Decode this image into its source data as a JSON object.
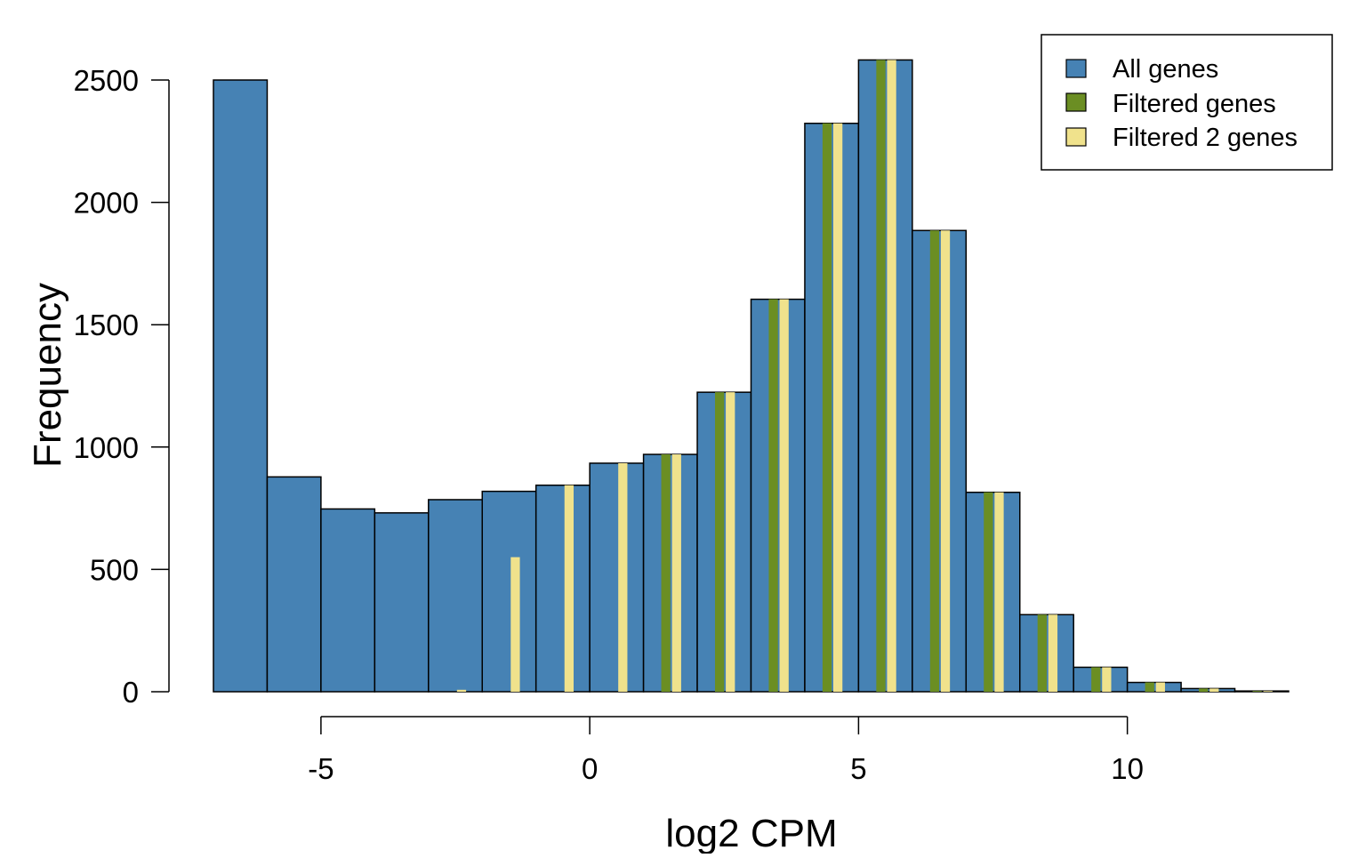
{
  "chart_data": {
    "type": "bar",
    "xlabel": "log2 CPM",
    "ylabel": "Frequency",
    "xlim": [
      -7,
      13
    ],
    "ylim": [
      0,
      2600
    ],
    "xticks": [
      -5,
      0,
      5,
      10
    ],
    "xtick_labels": [
      "-5",
      "0",
      "5",
      "10"
    ],
    "yticks": [
      0,
      500,
      1000,
      1500,
      2000,
      2500
    ],
    "ytick_labels": [
      "0",
      "500",
      "1000",
      "1500",
      "2000",
      "2500"
    ],
    "bin_edges": [
      -7,
      -6,
      -5,
      -4,
      -3,
      -2,
      -1,
      0,
      1,
      2,
      3,
      4,
      5,
      6,
      7,
      8,
      9,
      10,
      11,
      12,
      13
    ],
    "grid": false,
    "legend_position": "top-right",
    "series": [
      {
        "name": "All genes",
        "color": "#4682B4",
        "values": [
          2500,
          878,
          747,
          731,
          785,
          819,
          844,
          934,
          970,
          1224,
          1604,
          2323,
          2582,
          1885,
          815,
          315,
          100,
          38,
          13,
          3
        ]
      },
      {
        "name": "Filtered genes",
        "color": "#6B8E23",
        "values": [
          0,
          0,
          0,
          0,
          0,
          0,
          0,
          0,
          970,
          1224,
          1604,
          2323,
          2582,
          1885,
          815,
          315,
          100,
          38,
          13,
          3
        ]
      },
      {
        "name": "Filtered 2 genes",
        "color": "#F0E28C",
        "values": [
          0,
          0,
          0,
          0,
          8,
          550,
          844,
          934,
          970,
          1224,
          1604,
          2323,
          2582,
          1885,
          815,
          315,
          100,
          38,
          13,
          3
        ]
      }
    ]
  }
}
